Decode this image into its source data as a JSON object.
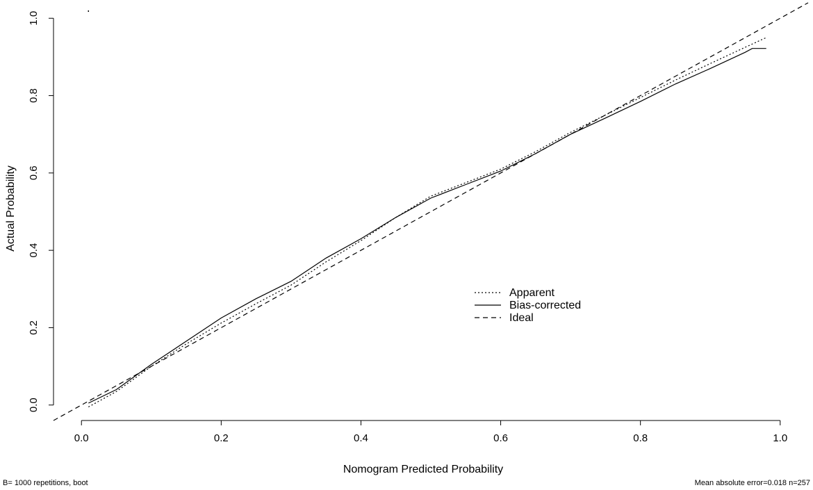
{
  "chart_data": {
    "type": "line",
    "xlabel": "Nomogram Predicted Probability",
    "ylabel": "Actual Probability",
    "xlim": [
      -0.04,
      1.04
    ],
    "ylim": [
      -0.04,
      1.04
    ],
    "x_ticks": [
      "0.0",
      "0.2",
      "0.4",
      "0.6",
      "0.8",
      "1.0"
    ],
    "y_ticks": [
      "0.0",
      "0.2",
      "0.4",
      "0.6",
      "0.8",
      "1.0"
    ],
    "grid": false,
    "legend_position": "center-right",
    "series": [
      {
        "name": "Apparent",
        "style": "dotted",
        "points": [
          [
            0.01,
            -0.005
          ],
          [
            0.05,
            0.035
          ],
          [
            0.1,
            0.1
          ],
          [
            0.15,
            0.158
          ],
          [
            0.2,
            0.212
          ],
          [
            0.25,
            0.262
          ],
          [
            0.3,
            0.31
          ],
          [
            0.35,
            0.37
          ],
          [
            0.4,
            0.425
          ],
          [
            0.45,
            0.485
          ],
          [
            0.5,
            0.54
          ],
          [
            0.55,
            0.575
          ],
          [
            0.6,
            0.61
          ],
          [
            0.65,
            0.655
          ],
          [
            0.7,
            0.705
          ],
          [
            0.75,
            0.75
          ],
          [
            0.8,
            0.795
          ],
          [
            0.85,
            0.84
          ],
          [
            0.9,
            0.883
          ],
          [
            0.95,
            0.925
          ],
          [
            0.98,
            0.95
          ]
        ]
      },
      {
        "name": "Bias-corrected",
        "style": "solid",
        "points": [
          [
            0.01,
            0.005
          ],
          [
            0.05,
            0.04
          ],
          [
            0.1,
            0.105
          ],
          [
            0.15,
            0.165
          ],
          [
            0.2,
            0.225
          ],
          [
            0.25,
            0.275
          ],
          [
            0.3,
            0.32
          ],
          [
            0.35,
            0.38
          ],
          [
            0.4,
            0.43
          ],
          [
            0.45,
            0.485
          ],
          [
            0.5,
            0.535
          ],
          [
            0.55,
            0.57
          ],
          [
            0.6,
            0.605
          ],
          [
            0.65,
            0.65
          ],
          [
            0.7,
            0.7
          ],
          [
            0.75,
            0.742
          ],
          [
            0.8,
            0.785
          ],
          [
            0.85,
            0.83
          ],
          [
            0.9,
            0.87
          ],
          [
            0.95,
            0.912
          ],
          [
            0.96,
            0.922
          ],
          [
            0.98,
            0.922
          ]
        ]
      },
      {
        "name": "Ideal",
        "style": "dashed",
        "points": [
          [
            -0.04,
            -0.04
          ],
          [
            1.04,
            1.04
          ]
        ]
      }
    ],
    "rug_points": [
      0.01
    ],
    "footnote_left": "B= 1000 repetitions, boot",
    "footnote_right": "Mean absolute error=0.018 n=257"
  }
}
